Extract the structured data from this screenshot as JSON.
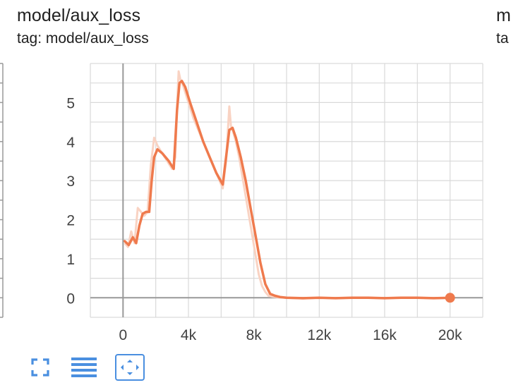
{
  "card": {
    "title": "model/aux_loss",
    "tag": "tag: model/aux_loss"
  },
  "next_card": {
    "title": "m",
    "tag": "ta"
  },
  "toolbar": {
    "icons": [
      "fullscreen-icon",
      "list-icon",
      "fit-domain-icon"
    ]
  },
  "colors": {
    "series": "#ef7a4d",
    "series_raw": "#f9d3c3",
    "grid": "#d9d9d9",
    "axis": "#999999",
    "tick_text": "#424242",
    "accent": "#4a8fe0"
  },
  "chart_data": {
    "type": "line",
    "title": "model/aux_loss",
    "xlabel": "",
    "ylabel": "",
    "xlim": [
      -2000,
      22000
    ],
    "ylim": [
      -0.5,
      6.0
    ],
    "x_ticks": [
      0,
      4000,
      8000,
      12000,
      16000,
      20000
    ],
    "x_tick_labels": [
      "0",
      "4k",
      "8k",
      "12k",
      "16k",
      "20k"
    ],
    "y_ticks": [
      0,
      1,
      2,
      3,
      4,
      5
    ],
    "y_tick_labels": [
      "0",
      "1",
      "2",
      "3",
      "4",
      "5"
    ],
    "grid": true,
    "series": [
      {
        "role": "raw",
        "x": [
          100,
          300,
          500,
          700,
          900,
          1100,
          1300,
          1500,
          1600,
          1700,
          1900,
          2100,
          2400,
          2700,
          3000,
          3200,
          3300,
          3400,
          3500,
          3700,
          4000,
          4300,
          4600,
          4900,
          5200,
          5500,
          5800,
          6100,
          6300,
          6500,
          6600,
          6700,
          6900,
          7100,
          7300,
          7500,
          7700,
          7900,
          8100,
          8300,
          8500,
          8700,
          8900,
          9100,
          9300,
          9500,
          10000,
          11000,
          12000,
          13000,
          14000,
          15000,
          16000,
          17000,
          18000,
          19000,
          20000
        ],
        "y": [
          1.4,
          1.3,
          1.7,
          1.4,
          2.3,
          2.2,
          2.1,
          2.2,
          2.8,
          3.4,
          4.1,
          3.9,
          3.7,
          3.5,
          3.3,
          3.6,
          4.9,
          5.8,
          5.6,
          5.4,
          5.0,
          4.6,
          4.3,
          4.0,
          3.7,
          3.4,
          3.1,
          2.8,
          3.5,
          4.9,
          4.4,
          4.3,
          4.0,
          3.6,
          3.1,
          2.6,
          2.1,
          1.6,
          1.1,
          0.6,
          0.3,
          0.15,
          0.05,
          0.03,
          0.02,
          0.01,
          0.0,
          -0.02,
          0.0,
          -0.01,
          0.0,
          0.0,
          -0.01,
          0.0,
          0.0,
          -0.01,
          0.0
        ]
      },
      {
        "role": "smoothed",
        "x": [
          100,
          350,
          600,
          800,
          1000,
          1200,
          1400,
          1600,
          1750,
          1900,
          2100,
          2400,
          2800,
          3100,
          3300,
          3450,
          3600,
          3800,
          4100,
          4500,
          4900,
          5300,
          5700,
          6100,
          6300,
          6500,
          6700,
          6900,
          7200,
          7500,
          7800,
          8100,
          8400,
          8700,
          9000,
          9300,
          9600,
          10000,
          11000,
          12000,
          13000,
          14000,
          15000,
          16000,
          17000,
          18000,
          19000,
          20000
        ],
        "y": [
          1.45,
          1.35,
          1.55,
          1.4,
          1.85,
          2.15,
          2.2,
          2.2,
          3.0,
          3.6,
          3.8,
          3.7,
          3.5,
          3.3,
          4.8,
          5.5,
          5.55,
          5.4,
          5.0,
          4.5,
          4.0,
          3.6,
          3.2,
          2.9,
          3.6,
          4.3,
          4.35,
          4.1,
          3.6,
          3.0,
          2.3,
          1.6,
          0.9,
          0.35,
          0.1,
          0.05,
          0.02,
          0.0,
          -0.01,
          0.0,
          -0.01,
          0.0,
          0.0,
          -0.01,
          0.0,
          0.0,
          -0.01,
          0.0
        ]
      }
    ],
    "last_point": {
      "x": 20000,
      "y": 0.0
    }
  }
}
